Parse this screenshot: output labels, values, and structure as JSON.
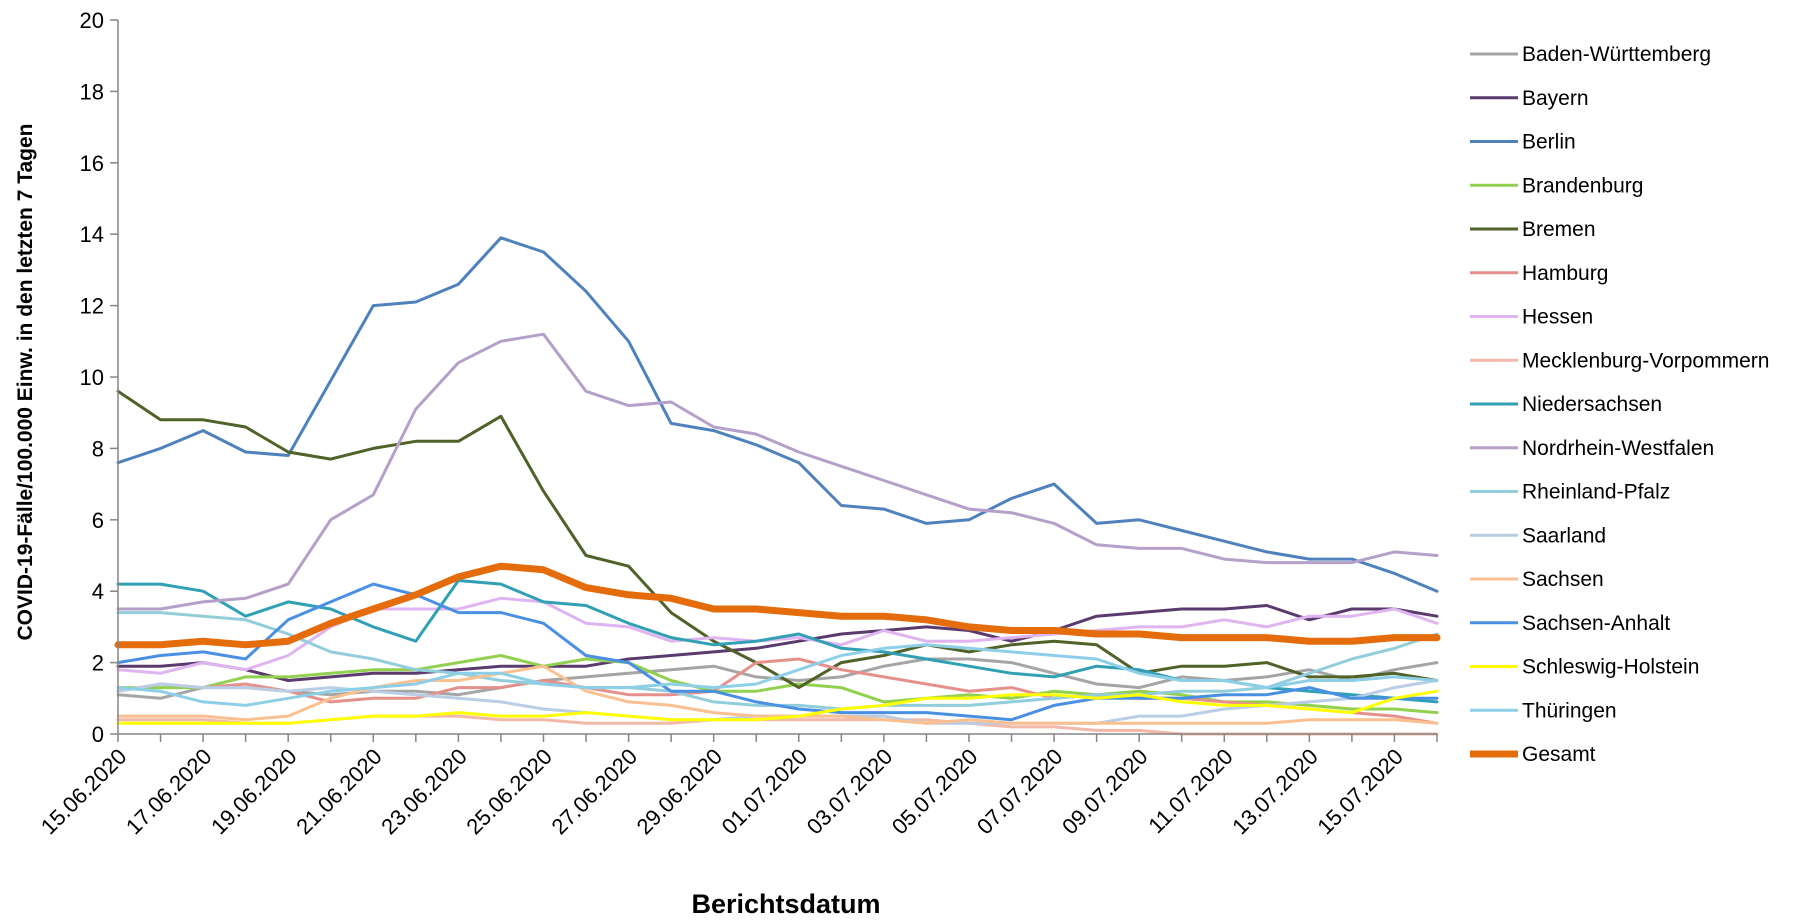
{
  "chart_data": {
    "type": "line",
    "title": "",
    "xlabel": "Berichtsdatum",
    "ylabel": "COVID-19-Fälle/100.000 Einw. in den letzten 7 Tagen",
    "ylim": [
      0,
      20
    ],
    "yticks": [
      0,
      2,
      4,
      6,
      8,
      10,
      12,
      14,
      16,
      18,
      20
    ],
    "grid": false,
    "legend_position": "right",
    "x": [
      "15.06.2020",
      "16.06.2020",
      "17.06.2020",
      "18.06.2020",
      "19.06.2020",
      "20.06.2020",
      "21.06.2020",
      "22.06.2020",
      "23.06.2020",
      "24.06.2020",
      "25.06.2020",
      "26.06.2020",
      "27.06.2020",
      "28.06.2020",
      "29.06.2020",
      "30.06.2020",
      "01.07.2020",
      "02.07.2020",
      "03.07.2020",
      "04.07.2020",
      "05.07.2020",
      "06.07.2020",
      "07.07.2020",
      "08.07.2020",
      "09.07.2020",
      "10.07.2020",
      "11.07.2020",
      "12.07.2020",
      "13.07.2020",
      "14.07.2020",
      "15.07.2020",
      "16.07.2020"
    ],
    "xtick_labels": [
      "15.06.2020",
      "17.06.2020",
      "19.06.2020",
      "21.06.2020",
      "23.06.2020",
      "25.06.2020",
      "27.06.2020",
      "29.06.2020",
      "01.07.2020",
      "03.07.2020",
      "05.07.2020",
      "07.07.2020",
      "09.07.2020",
      "11.07.2020",
      "13.07.2020",
      "15.07.2020"
    ],
    "series": [
      {
        "name": "Baden-Württemberg",
        "color": "#a5a5a5",
        "width": 3,
        "values": [
          1.1,
          1.0,
          1.3,
          1.3,
          1.2,
          1.1,
          1.2,
          1.2,
          1.1,
          1.3,
          1.5,
          1.6,
          1.7,
          1.8,
          1.9,
          1.6,
          1.5,
          1.6,
          1.9,
          2.1,
          2.1,
          2.0,
          1.7,
          1.4,
          1.3,
          1.6,
          1.5,
          1.6,
          1.8,
          1.5,
          1.8,
          2.0
        ]
      },
      {
        "name": "Bayern",
        "color": "#5b3a6e",
        "width": 3,
        "values": [
          1.9,
          1.9,
          2.0,
          1.8,
          1.5,
          1.6,
          1.7,
          1.7,
          1.8,
          1.9,
          1.9,
          1.9,
          2.1,
          2.2,
          2.3,
          2.4,
          2.6,
          2.8,
          2.9,
          3.0,
          2.9,
          2.6,
          2.9,
          3.3,
          3.4,
          3.5,
          3.5,
          3.6,
          3.2,
          3.5,
          3.5,
          3.3
        ]
      },
      {
        "name": "Berlin",
        "color": "#4f81bd",
        "width": 3,
        "values": [
          7.6,
          8.0,
          8.5,
          7.9,
          7.8,
          9.9,
          12.0,
          12.1,
          12.6,
          13.9,
          13.5,
          12.4,
          11.0,
          8.7,
          8.5,
          8.1,
          7.6,
          6.4,
          6.3,
          5.9,
          6.0,
          6.6,
          7.0,
          5.9,
          6.0,
          5.7,
          5.4,
          5.1,
          4.9,
          4.9,
          4.5,
          4.0
        ]
      },
      {
        "name": "Brandenburg",
        "color": "#92d050",
        "width": 3,
        "values": [
          1.3,
          1.3,
          1.3,
          1.6,
          1.6,
          1.7,
          1.8,
          1.8,
          2.0,
          2.2,
          1.9,
          2.1,
          2.0,
          1.5,
          1.2,
          1.2,
          1.4,
          1.3,
          0.9,
          1.0,
          1.1,
          1.0,
          1.2,
          1.1,
          1.2,
          1.1,
          0.9,
          0.9,
          0.8,
          0.7,
          0.7,
          0.6
        ]
      },
      {
        "name": "Bremen",
        "color": "#4f6228",
        "width": 3,
        "values": [
          9.6,
          8.8,
          8.8,
          8.6,
          7.9,
          7.7,
          8.0,
          8.2,
          8.2,
          8.9,
          6.8,
          5.0,
          4.7,
          3.4,
          2.6,
          2.0,
          1.3,
          2.0,
          2.2,
          2.5,
          2.3,
          2.5,
          2.6,
          2.5,
          1.7,
          1.9,
          1.9,
          2.0,
          1.6,
          1.6,
          1.7,
          1.5
        ]
      },
      {
        "name": "Hamburg",
        "color": "#e6908c",
        "width": 3,
        "values": [
          1.2,
          1.4,
          1.3,
          1.4,
          1.2,
          0.9,
          1.0,
          1.0,
          1.3,
          1.3,
          1.5,
          1.3,
          1.1,
          1.1,
          1.2,
          2.0,
          2.1,
          1.8,
          1.6,
          1.4,
          1.2,
          1.3,
          1.0,
          1.1,
          1.0,
          1.0,
          0.9,
          0.8,
          0.7,
          0.6,
          0.5,
          0.3
        ]
      },
      {
        "name": "Hessen",
        "color": "#e0b4f0",
        "width": 3,
        "values": [
          1.8,
          1.7,
          2.0,
          1.8,
          2.2,
          3.0,
          3.5,
          3.5,
          3.5,
          3.8,
          3.7,
          3.1,
          3.0,
          2.6,
          2.7,
          2.6,
          2.7,
          2.5,
          2.9,
          2.6,
          2.6,
          2.7,
          2.8,
          2.9,
          3.0,
          3.0,
          3.2,
          3.0,
          3.3,
          3.3,
          3.5,
          3.1
        ]
      },
      {
        "name": "Mecklenburg-Vorpommern",
        "color": "#f2b8a8",
        "width": 3,
        "values": [
          0.4,
          0.4,
          0.4,
          0.3,
          0.3,
          0.4,
          0.5,
          0.5,
          0.5,
          0.4,
          0.4,
          0.3,
          0.3,
          0.3,
          0.4,
          0.4,
          0.4,
          0.4,
          0.4,
          0.4,
          0.3,
          0.2,
          0.2,
          0.1,
          0.1,
          0.0,
          0.0,
          0.0,
          0.0,
          0.0,
          0.0,
          0.0
        ]
      },
      {
        "name": "Niedersachsen",
        "color": "#31a0b5",
        "width": 3,
        "values": [
          4.2,
          4.2,
          4.0,
          3.3,
          3.7,
          3.5,
          3.0,
          2.6,
          4.3,
          4.2,
          3.7,
          3.6,
          3.1,
          2.7,
          2.5,
          2.6,
          2.8,
          2.4,
          2.3,
          2.1,
          1.9,
          1.7,
          1.6,
          1.9,
          1.8,
          1.5,
          1.5,
          1.3,
          1.2,
          1.1,
          1.0,
          0.9
        ]
      },
      {
        "name": "Nordrhein-Westfalen",
        "color": "#b4a0c8",
        "width": 3,
        "values": [
          3.5,
          3.5,
          3.7,
          3.8,
          4.2,
          6.0,
          6.7,
          9.1,
          10.4,
          11.0,
          11.2,
          9.6,
          9.2,
          9.3,
          8.6,
          8.4,
          7.9,
          7.5,
          7.1,
          6.7,
          6.3,
          6.2,
          5.9,
          5.3,
          5.2,
          5.2,
          4.9,
          4.8,
          4.8,
          4.8,
          5.1,
          5.0
        ]
      },
      {
        "name": "Rheinland-Pfalz",
        "color": "#92cddc",
        "width": 3,
        "values": [
          3.4,
          3.4,
          3.3,
          3.2,
          2.8,
          2.3,
          2.1,
          1.8,
          1.7,
          1.5,
          1.4,
          1.3,
          1.3,
          1.2,
          0.9,
          0.8,
          0.8,
          0.7,
          0.8,
          0.8,
          0.8,
          0.9,
          1.0,
          1.1,
          1.1,
          1.2,
          1.2,
          1.3,
          1.7,
          2.1,
          2.4,
          2.8
        ]
      },
      {
        "name": "Saarland",
        "color": "#b9cde5",
        "width": 3,
        "values": [
          1.2,
          1.4,
          1.3,
          1.3,
          1.2,
          1.3,
          1.2,
          1.1,
          1.0,
          0.9,
          0.7,
          0.6,
          0.5,
          0.4,
          0.4,
          0.5,
          0.5,
          0.5,
          0.5,
          0.3,
          0.3,
          0.3,
          0.3,
          0.3,
          0.5,
          0.5,
          0.7,
          0.8,
          0.9,
          1.0,
          1.3,
          1.5
        ]
      },
      {
        "name": "Sachsen",
        "color": "#fac090",
        "width": 3,
        "values": [
          0.5,
          0.5,
          0.5,
          0.4,
          0.5,
          1.0,
          1.3,
          1.5,
          1.5,
          1.7,
          1.9,
          1.2,
          0.9,
          0.8,
          0.6,
          0.5,
          0.5,
          0.5,
          0.4,
          0.3,
          0.4,
          0.3,
          0.3,
          0.3,
          0.3,
          0.3,
          0.3,
          0.3,
          0.4,
          0.4,
          0.4,
          0.3
        ]
      },
      {
        "name": "Sachsen-Anhalt",
        "color": "#4a90e2",
        "width": 3,
        "values": [
          2.0,
          2.2,
          2.3,
          2.1,
          3.2,
          3.7,
          4.2,
          3.9,
          3.4,
          3.4,
          3.1,
          2.2,
          2.0,
          1.2,
          1.2,
          0.9,
          0.7,
          0.6,
          0.6,
          0.6,
          0.5,
          0.4,
          0.8,
          1.0,
          1.0,
          1.0,
          1.1,
          1.1,
          1.3,
          1.0,
          1.0,
          1.0
        ]
      },
      {
        "name": "Schleswig-Holstein",
        "color": "#ffff00",
        "width": 3,
        "values": [
          0.3,
          0.3,
          0.3,
          0.3,
          0.3,
          0.4,
          0.5,
          0.5,
          0.6,
          0.5,
          0.5,
          0.6,
          0.5,
          0.4,
          0.4,
          0.4,
          0.5,
          0.7,
          0.8,
          1.0,
          1.0,
          1.1,
          1.1,
          1.0,
          1.1,
          0.9,
          0.8,
          0.8,
          0.7,
          0.6,
          1.0,
          1.2
        ]
      },
      {
        "name": "Thüringen",
        "color": "#8ecfe8",
        "width": 3,
        "values": [
          1.3,
          1.2,
          0.9,
          0.8,
          1.0,
          1.2,
          1.3,
          1.4,
          1.7,
          1.7,
          1.4,
          1.3,
          1.3,
          1.4,
          1.3,
          1.4,
          1.8,
          2.2,
          2.4,
          2.5,
          2.4,
          2.3,
          2.2,
          2.1,
          1.7,
          1.5,
          1.5,
          1.3,
          1.5,
          1.5,
          1.6,
          1.5
        ]
      },
      {
        "name": "Gesamt",
        "color": "#e46c0a",
        "width": 7,
        "values": [
          2.5,
          2.5,
          2.6,
          2.5,
          2.6,
          3.1,
          3.5,
          3.9,
          4.4,
          4.7,
          4.6,
          4.1,
          3.9,
          3.8,
          3.5,
          3.5,
          3.4,
          3.3,
          3.3,
          3.2,
          3.0,
          2.9,
          2.9,
          2.8,
          2.8,
          2.7,
          2.7,
          2.7,
          2.6,
          2.6,
          2.7,
          2.7
        ]
      }
    ]
  }
}
